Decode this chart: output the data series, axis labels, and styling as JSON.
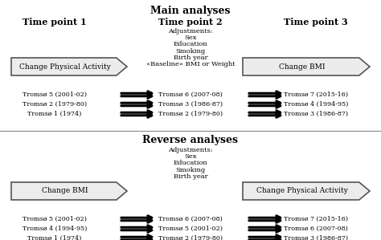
{
  "title_main": "Main analyses",
  "title_reverse": "Reverse analyses",
  "tp1": "Time point 1",
  "tp2": "Time point 2",
  "tp3": "Time point 3",
  "adjustments_main": [
    "Adjustments:",
    "Sex",
    "Education",
    "Smoking",
    "Birth year",
    "«Baseline» BMI or Weight"
  ],
  "adjustments_reverse": [
    "Adjustments:",
    "Sex",
    "Education",
    "Smoking",
    "Birth year"
  ],
  "arrow1_main": "Change Physical Activity",
  "arrow2_main": "Change BMI",
  "arrow1_reverse": "Change BMI",
  "arrow2_reverse": "Change Physical Activity",
  "main_col1": [
    "Tromsø 5 (2001-02)",
    "Tromsø 2 (1979-80)",
    "Tromsø 1 (1974)"
  ],
  "main_col2": [
    "Tromsø 6 (2007-08)",
    "Tromsø 3 (1986-87)",
    "Tromsø 2 (1979-80)"
  ],
  "main_col3": [
    "Tromsø 7 (2015-16)",
    "Tromsø 4 (1994-95)",
    "Tromsø 3 (1986-87)"
  ],
  "rev_col1": [
    "Tromsø 5 (2001-02)",
    "Tromsø 4 (1994-95)",
    "Tromsø 1 (1974)"
  ],
  "rev_col2": [
    "Tromsø 6 (2007-08)",
    "Tromsø 5 (2001-02)",
    "Tromsø 2 (1979-80)"
  ],
  "rev_col3": [
    "Tromsø 7 (2015-16)",
    "Tromsø 6 (2007-08)",
    "Tromsø 3 (1986-87)"
  ]
}
